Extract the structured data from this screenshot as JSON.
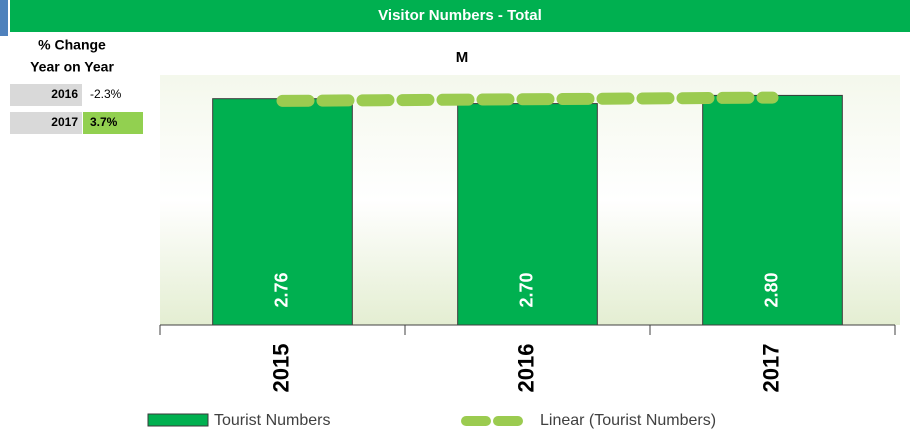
{
  "header": {
    "title": "Visitor Numbers - Total"
  },
  "change_table": {
    "title": [
      "% Change",
      "Year on Year"
    ],
    "rows": [
      {
        "year": "2016",
        "change": "-2.3%"
      },
      {
        "year": "2017",
        "change": "3.7%"
      }
    ]
  },
  "chart_data": {
    "type": "bar",
    "title": "M",
    "categories": [
      "2015",
      "2016",
      "2017"
    ],
    "series": [
      {
        "name": "Tourist Numbers",
        "color": "#00b050",
        "values": [
          2.76,
          2.7,
          2.8
        ],
        "value_labels": [
          "2.76",
          "2.70",
          "2.80"
        ]
      }
    ],
    "trendline": {
      "name": "Linear (Tourist Numbers)",
      "color": "#9bcb50"
    },
    "ylim": [
      0,
      3
    ]
  }
}
